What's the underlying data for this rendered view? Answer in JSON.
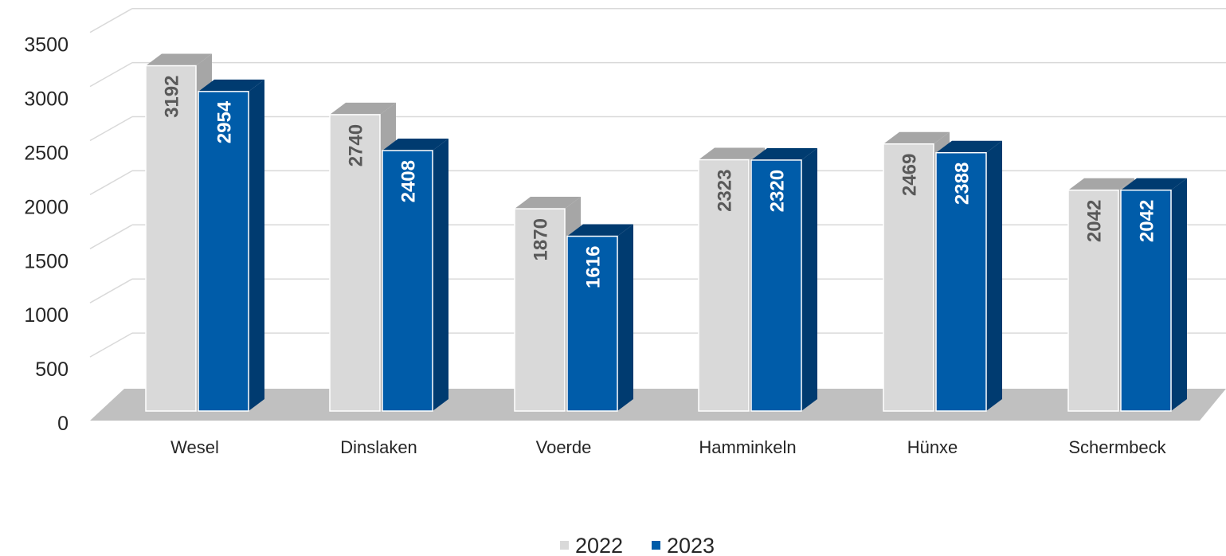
{
  "chart_data": {
    "type": "bar",
    "style": "3d-clustered-column",
    "title": "",
    "xlabel": "",
    "ylabel": "",
    "ylim": [
      0,
      3500
    ],
    "yticks": [
      0,
      500,
      1000,
      1500,
      2000,
      2500,
      3000,
      3500
    ],
    "grid": true,
    "legend_position": "bottom",
    "data_labels": true,
    "categories": [
      "Wesel",
      "Dinslaken",
      "Voerde",
      "Hamminkeln",
      "Hünxe",
      "Schermbeck"
    ],
    "series": [
      {
        "name": "2022",
        "values": [
          3192,
          2740,
          1870,
          2323,
          2469,
          2042
        ],
        "color": "#d9d9d9",
        "side_color": "#a6a6a6",
        "top_color": "#a6a6a6",
        "label_color": "#595959"
      },
      {
        "name": "2023",
        "values": [
          2954,
          2408,
          1616,
          2320,
          2388,
          2042
        ],
        "color": "#005ca9",
        "side_color": "#003b70",
        "top_color": "#003b70",
        "label_color": "#ffffff"
      }
    ],
    "colors": {
      "gridline": "#d9d9d9",
      "floor": "#c0c0c0",
      "text": "#262626"
    }
  }
}
